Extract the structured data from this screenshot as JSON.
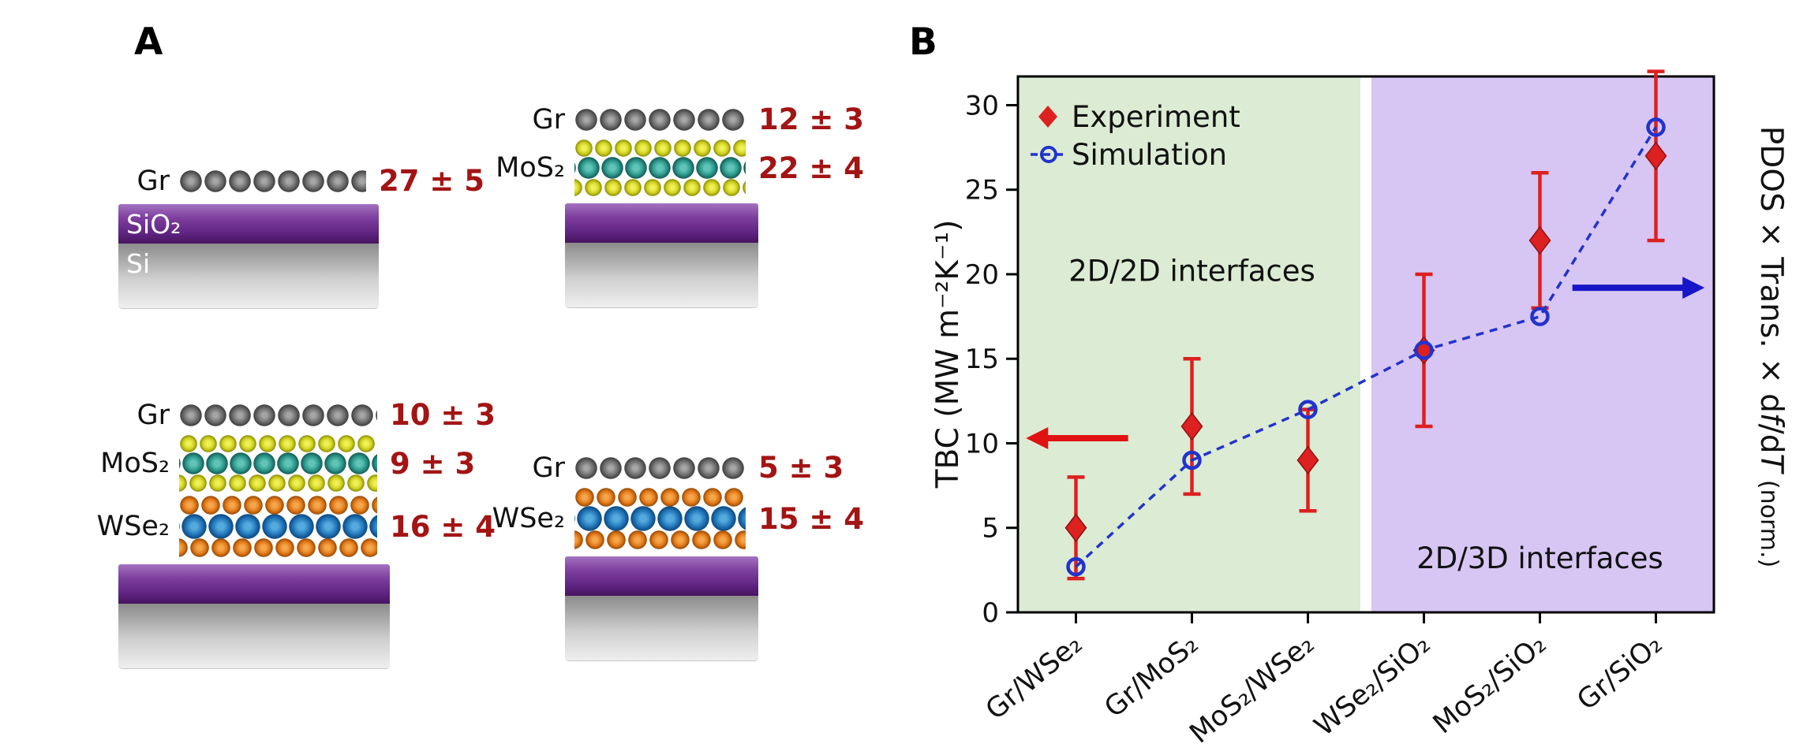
{
  "panel_a": {
    "label": "A",
    "value_color": "#a31414",
    "stacks": [
      {
        "name": "gr-on-sio2-si",
        "rows": [
          {
            "label": "Gr",
            "material": "gr",
            "value": "27 ± 5"
          }
        ],
        "slabs": [
          {
            "material": "sio2",
            "label": "SiO₂"
          },
          {
            "material": "si",
            "label": "Si"
          }
        ]
      },
      {
        "name": "gr-mos2-on-sio2-si",
        "rows": [
          {
            "label": "Gr",
            "material": "gr",
            "value": "12 ± 3"
          },
          {
            "label": "MoS₂",
            "material": "mos2",
            "value": "22 ± 4"
          }
        ],
        "slabs": [
          {
            "material": "sio2",
            "label": ""
          },
          {
            "material": "si",
            "label": ""
          }
        ]
      },
      {
        "name": "gr-mos2-wse2-on-sio2-si",
        "rows": [
          {
            "label": "Gr",
            "material": "gr",
            "value": "10 ± 3"
          },
          {
            "label": "MoS₂",
            "material": "mos2",
            "value": "9 ± 3"
          },
          {
            "label": "WSe₂",
            "material": "wse2",
            "value": "16 ± 4"
          }
        ],
        "slabs": [
          {
            "material": "sio2",
            "label": ""
          },
          {
            "material": "si",
            "label": ""
          }
        ]
      },
      {
        "name": "gr-wse2-on-sio2-si",
        "rows": [
          {
            "label": "Gr",
            "material": "gr",
            "value": "5 ± 3"
          },
          {
            "label": "WSe₂",
            "material": "wse2",
            "value": "15 ± 4"
          }
        ],
        "slabs": [
          {
            "material": "sio2",
            "label": ""
          },
          {
            "material": "si",
            "label": ""
          }
        ]
      }
    ]
  },
  "panel_b": {
    "label": "B"
  },
  "chart_data": {
    "type": "scatter",
    "categories": [
      "Gr/WSe₂",
      "Gr/MoS₂",
      "MoS₂/WSe₂",
      "WSe₂/SiO₂",
      "MoS₂/SiO₂",
      "Gr/SiO₂"
    ],
    "series": [
      {
        "name": "Experiment",
        "marker": "diamond",
        "color": "#dd2020",
        "edge_color": "#90100f",
        "values": [
          5,
          11,
          9,
          15.5,
          22,
          27
        ],
        "errors": [
          3,
          4,
          3,
          4.5,
          4,
          5
        ]
      },
      {
        "name": "Simulation",
        "marker": "open-circle",
        "linestyle": "dashed",
        "color": "#2233cc",
        "values": [
          2.7,
          9,
          12,
          15.5,
          17.5,
          28.7
        ]
      }
    ],
    "ylabel_left": "TBC (MW m⁻²K⁻¹)",
    "ylabel_right_parts": [
      {
        "text": "PDOS × Trans. × d"
      },
      {
        "text": "f",
        "italic": true
      },
      {
        "text": "/d"
      },
      {
        "text": "T",
        "italic": true
      },
      {
        "text": " (norm.)",
        "small": true
      }
    ],
    "ylim": [
      0,
      31.7
    ],
    "yticks": [
      0,
      5,
      10,
      15,
      20,
      25,
      30
    ],
    "grid": false,
    "legend_position": "top-left",
    "regions": [
      {
        "label": "2D/2D interfaces",
        "start": 0,
        "end": 3,
        "color": "#dcebd3",
        "label_v": 19.6
      },
      {
        "label": "2D/3D interfaces",
        "start": 3,
        "end": 6,
        "color": "#d7c6f3",
        "label_v": 2.6
      }
    ],
    "arrows": [
      {
        "color": "#e01212",
        "direction": "left",
        "y": 10.3,
        "tail": 0.95,
        "tip": 0.07
      },
      {
        "color": "#1616c8",
        "direction": "right",
        "y": 19.2,
        "tail": 4.78,
        "tip": 5.92
      }
    ]
  }
}
